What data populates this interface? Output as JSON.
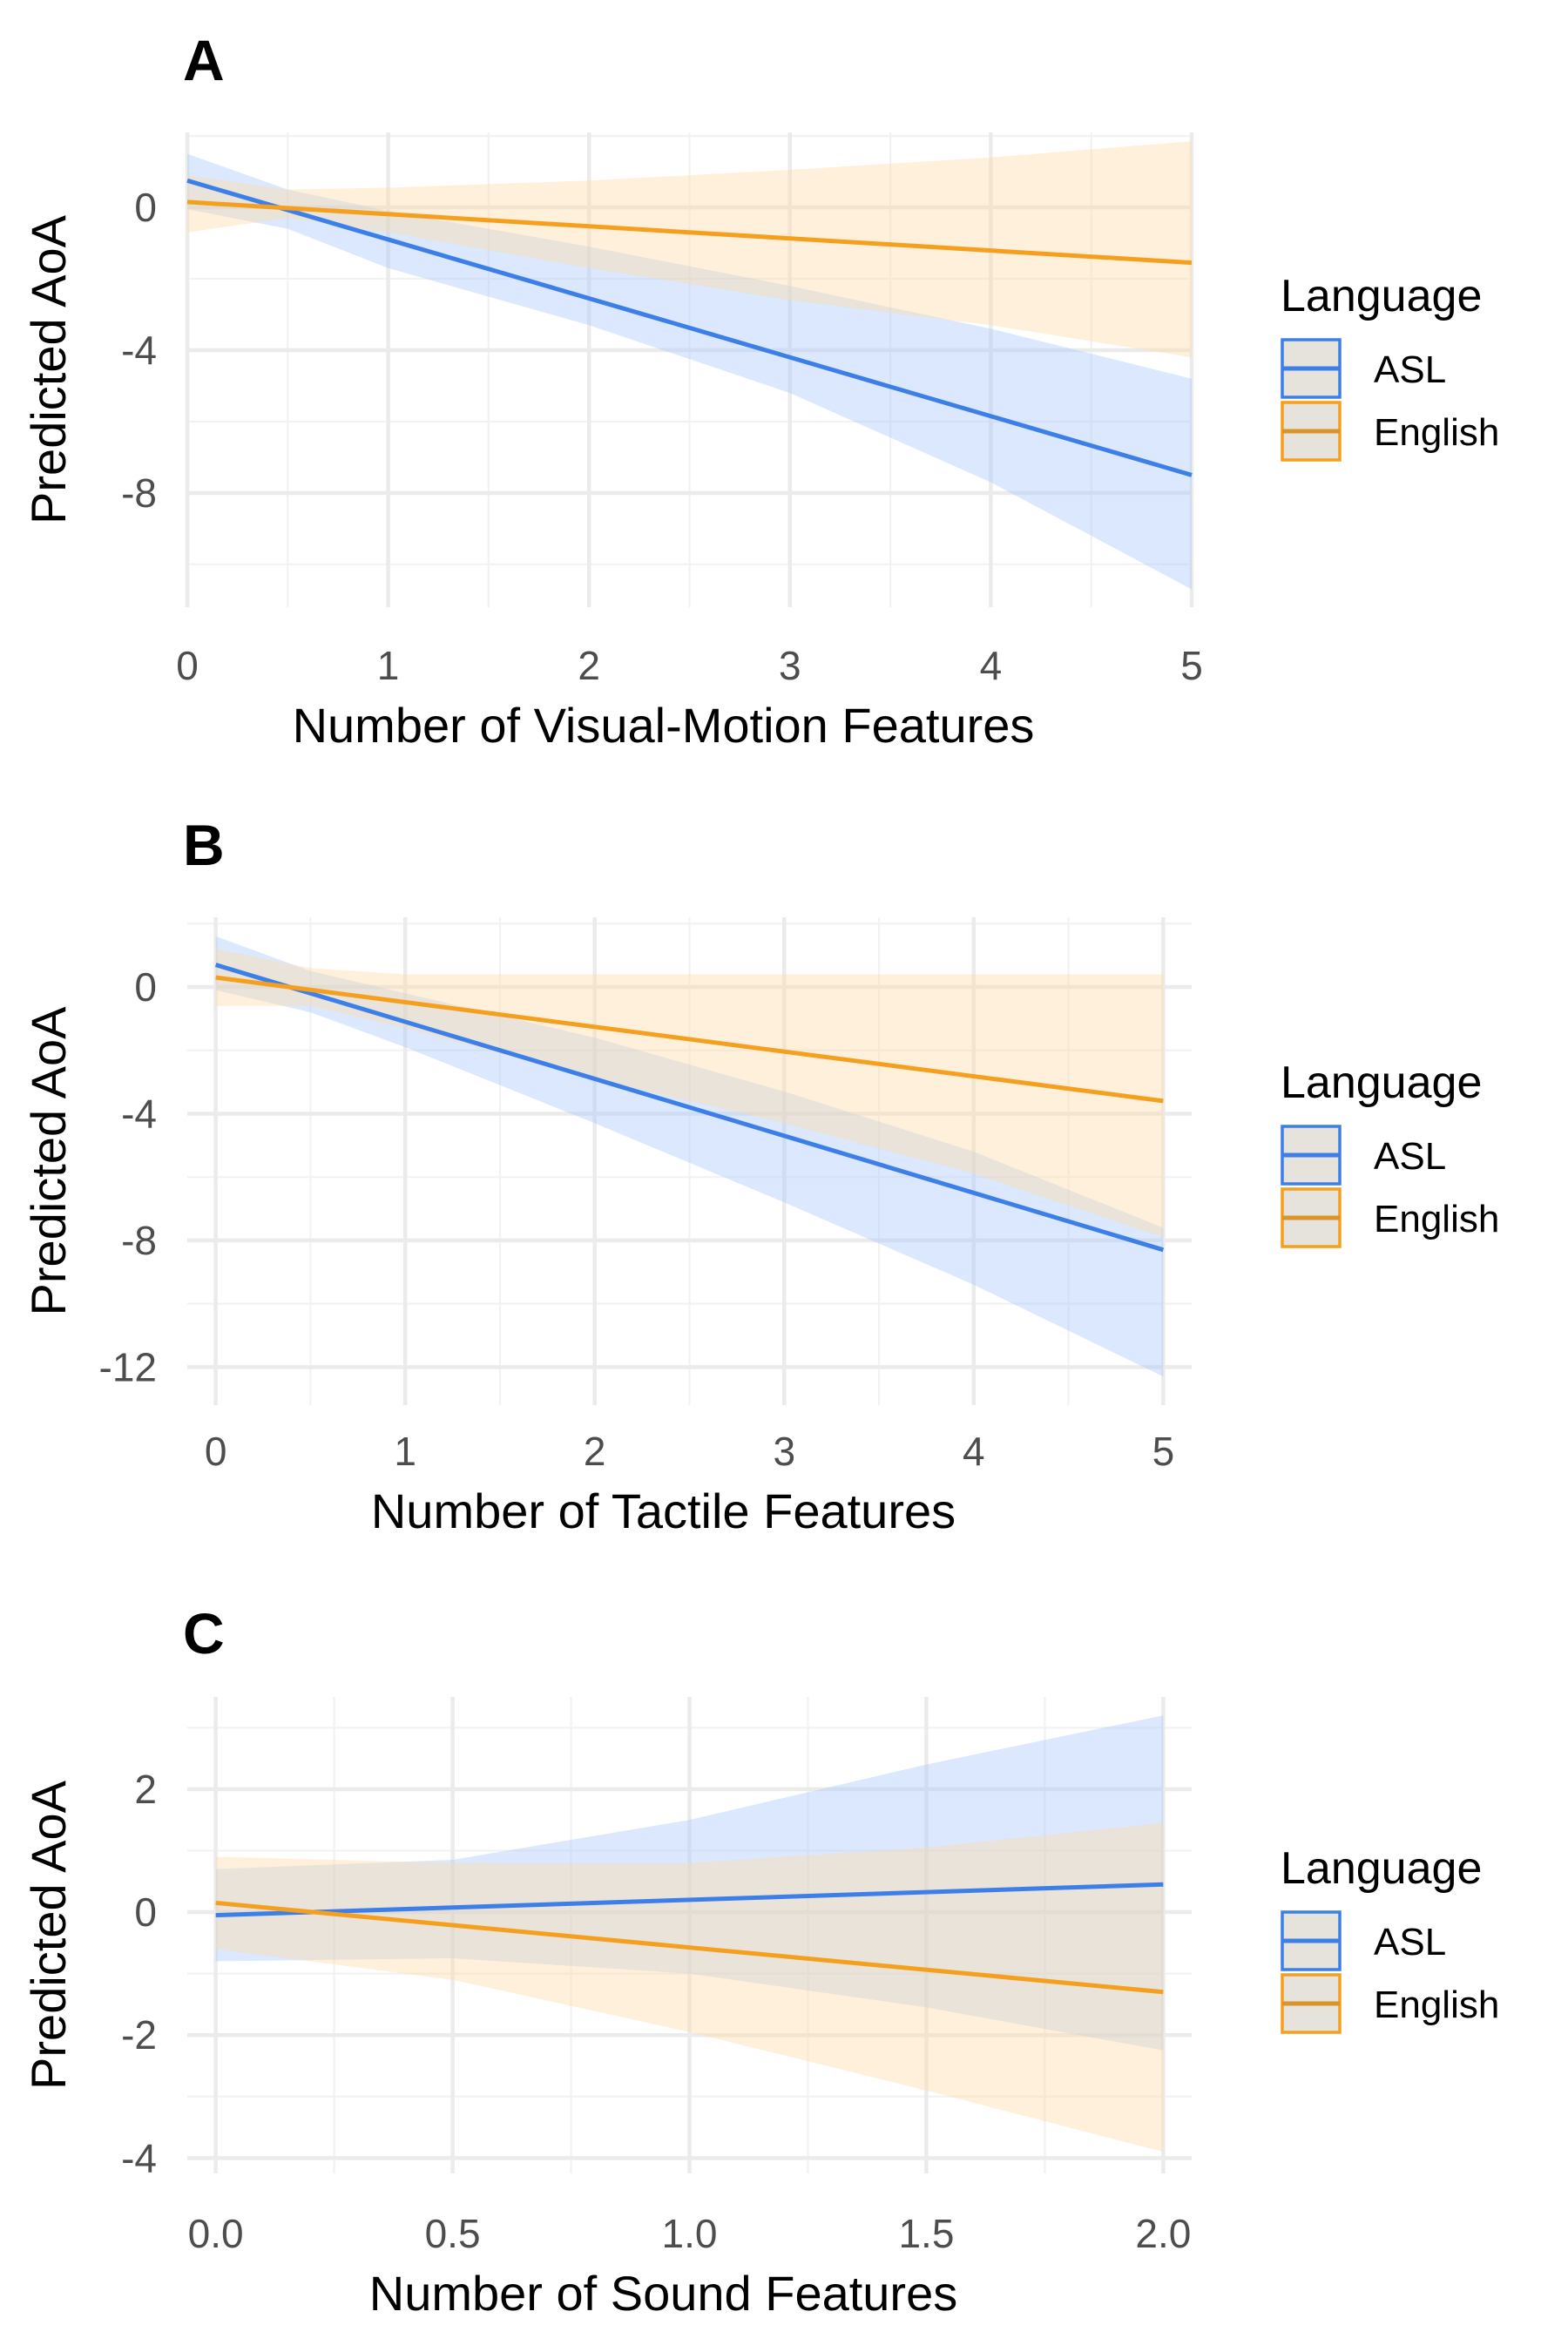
{
  "colors": {
    "ASL": "#3d7fe8",
    "English": "#f59f1f",
    "ASL_ribbon": "#a9c8fb",
    "English_ribbon": "#fddcaa"
  },
  "chart_data": [
    {
      "type": "line",
      "panel_label": "A",
      "xlabel": "Number of Visual-Motion Features",
      "ylabel": "Predicted AoA",
      "xlim": [
        0,
        5
      ],
      "ylim": [
        -11.2,
        2.1
      ],
      "x_ticks": [
        0,
        1,
        2,
        3,
        4,
        5
      ],
      "x_tick_labels": [
        "0",
        "1",
        "2",
        "3",
        "4",
        "5"
      ],
      "y_ticks": [
        0,
        -4,
        -8
      ],
      "y_tick_labels": [
        "0",
        "-4",
        "-8"
      ],
      "grid": true,
      "legend": {
        "title": "Language",
        "position": "right"
      },
      "series": [
        {
          "name": "ASL",
          "x": [
            0,
            5
          ],
          "y": [
            0.75,
            -7.5
          ],
          "ribbon": {
            "x": [
              0,
              0.5,
              1,
              2,
              3,
              4,
              5
            ],
            "lower": [
              -0.05,
              -0.6,
              -1.7,
              -3.3,
              -5.2,
              -7.7,
              -10.7
            ],
            "upper": [
              1.5,
              0.5,
              -0.1,
              -1.1,
              -2.2,
              -3.4,
              -4.8
            ]
          }
        },
        {
          "name": "English",
          "x": [
            0,
            5
          ],
          "y": [
            0.15,
            -1.55
          ],
          "ribbon": {
            "x": [
              0,
              0.5,
              1,
              2,
              3,
              4,
              5
            ],
            "lower": [
              -0.7,
              -0.3,
              -0.7,
              -1.7,
              -2.6,
              -3.3,
              -4.2
            ],
            "upper": [
              0.9,
              0.5,
              0.55,
              0.75,
              1.05,
              1.4,
              1.85
            ]
          }
        }
      ]
    },
    {
      "type": "line",
      "panel_label": "B",
      "xlabel": "Number of Tactile Features",
      "ylabel": "Predicted AoA",
      "xlim": [
        -0.15,
        5.15
      ],
      "ylim": [
        -13.2,
        2.2
      ],
      "x_ticks": [
        0,
        1,
        2,
        3,
        4,
        5
      ],
      "x_tick_labels": [
        "0",
        "1",
        "2",
        "3",
        "4",
        "5"
      ],
      "y_ticks": [
        0,
        -4,
        -8,
        -12
      ],
      "y_tick_labels": [
        "0",
        "-4",
        "-8",
        "-12"
      ],
      "grid": true,
      "legend": {
        "title": "Language",
        "position": "right"
      },
      "series": [
        {
          "name": "ASL",
          "x": [
            0,
            5
          ],
          "y": [
            0.7,
            -8.3
          ],
          "ribbon": {
            "x": [
              0,
              0.5,
              1,
              2,
              3,
              4,
              5
            ],
            "lower": [
              -0.1,
              -0.8,
              -1.9,
              -4.3,
              -6.8,
              -9.4,
              -12.3
            ],
            "upper": [
              1.6,
              0.5,
              -0.2,
              -1.6,
              -3.3,
              -5.2,
              -7.6
            ]
          }
        },
        {
          "name": "English",
          "x": [
            0,
            5
          ],
          "y": [
            0.3,
            -3.6
          ],
          "ribbon": {
            "x": [
              0,
              0.5,
              1,
              2,
              3,
              4,
              5
            ],
            "lower": [
              -0.6,
              -0.6,
              -1.3,
              -2.9,
              -4.3,
              -5.9,
              -7.9
            ],
            "upper": [
              1.2,
              0.6,
              0.4,
              0.4,
              0.4,
              0.4,
              0.4
            ]
          }
        }
      ]
    },
    {
      "type": "line",
      "panel_label": "C",
      "xlabel": "Number of Sound Features",
      "ylabel": "Predicted AoA",
      "xlim": [
        -0.06,
        2.06
      ],
      "ylim": [
        -4.25,
        3.5
      ],
      "x_ticks": [
        0,
        0.5,
        1,
        1.5,
        2
      ],
      "x_tick_labels": [
        "0.0",
        "0.5",
        "1.0",
        "1.5",
        "2.0"
      ],
      "y_ticks": [
        2,
        0,
        -2,
        -4
      ],
      "y_tick_labels": [
        "2",
        "0",
        "-2",
        "-4"
      ],
      "grid": true,
      "legend": {
        "title": "Language",
        "position": "right"
      },
      "series": [
        {
          "name": "ASL",
          "x": [
            0,
            2
          ],
          "y": [
            -0.05,
            0.45
          ],
          "ribbon": {
            "x": [
              0,
              0.5,
              1,
              1.5,
              2
            ],
            "lower": [
              -0.8,
              -0.75,
              -1.0,
              -1.55,
              -2.25
            ],
            "upper": [
              0.7,
              0.85,
              1.5,
              2.4,
              3.2
            ]
          }
        },
        {
          "name": "English",
          "x": [
            0,
            2
          ],
          "y": [
            0.15,
            -1.3
          ],
          "ribbon": {
            "x": [
              0,
              0.5,
              1,
              1.5,
              2
            ],
            "lower": [
              -0.6,
              -1.1,
              -1.95,
              -2.9,
              -3.9
            ],
            "upper": [
              0.9,
              0.8,
              0.8,
              1.05,
              1.45
            ]
          }
        }
      ]
    }
  ]
}
